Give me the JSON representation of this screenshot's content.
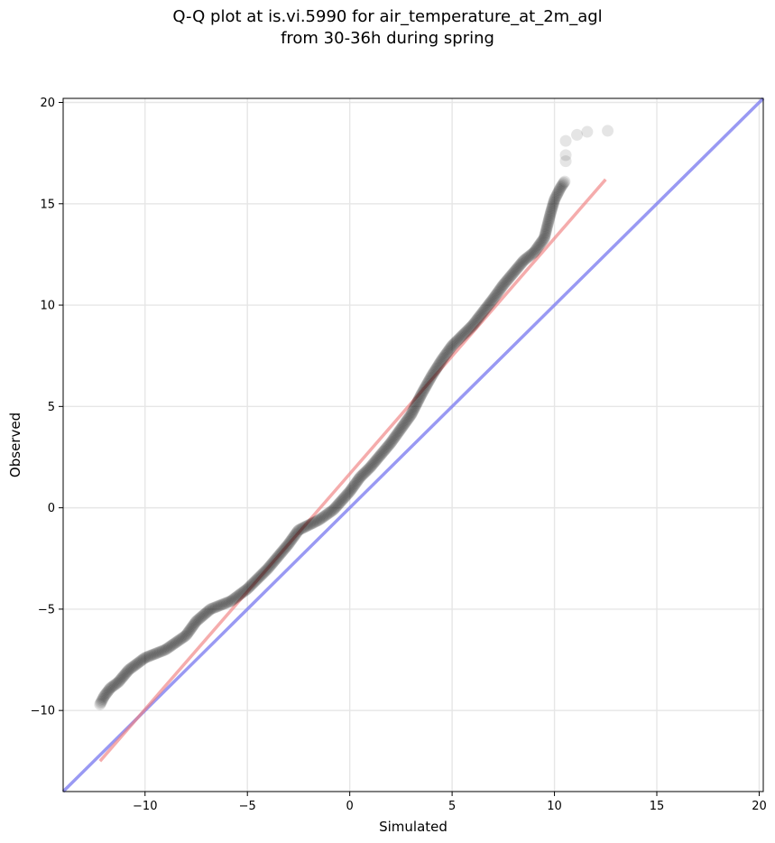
{
  "chart_data": {
    "type": "scatter",
    "title": "Q-Q plot at is.vi.5990 for air_temperature_at_2m_agl",
    "subtitle": "from 30-36h during spring",
    "xlabel": "Simulated",
    "ylabel": "Observed",
    "xlim": [
      -14,
      20.2
    ],
    "ylim": [
      -14,
      20.2
    ],
    "xticks": [
      -10,
      -5,
      0,
      5,
      10,
      15,
      20
    ],
    "yticks": [
      -10,
      -5,
      0,
      5,
      10,
      15,
      20
    ],
    "xtick_labels": [
      "−10",
      "−5",
      "0",
      "5",
      "10",
      "15",
      "20"
    ],
    "ytick_labels": [
      "−10",
      "−5",
      "0",
      "5",
      "10",
      "15",
      "20"
    ],
    "grid": true,
    "colors": {
      "points": "#000000",
      "fit_line": "#f08080",
      "identity_line": "#8080f0",
      "grid": "#e6e6e6"
    },
    "series": [
      {
        "kind": "quantile_points",
        "anchors": [
          [
            -12.2,
            -9.7
          ],
          [
            -12.0,
            -9.3
          ],
          [
            -11.7,
            -8.9
          ],
          [
            -11.3,
            -8.6
          ],
          [
            -10.8,
            -8.0
          ],
          [
            -10.0,
            -7.4
          ],
          [
            -9.0,
            -7.0
          ],
          [
            -8.0,
            -6.3
          ],
          [
            -7.5,
            -5.6
          ],
          [
            -6.8,
            -5.0
          ],
          [
            -5.8,
            -4.6
          ],
          [
            -5.0,
            -4.0
          ],
          [
            -4.0,
            -3.0
          ],
          [
            -3.0,
            -1.8
          ],
          [
            -2.5,
            -1.1
          ],
          [
            -1.5,
            -0.6
          ],
          [
            -0.8,
            -0.1
          ],
          [
            0.0,
            0.8
          ],
          [
            0.5,
            1.5
          ],
          [
            1.0,
            2.0
          ],
          [
            2.0,
            3.2
          ],
          [
            3.0,
            4.6
          ],
          [
            3.5,
            5.6
          ],
          [
            4.0,
            6.5
          ],
          [
            4.5,
            7.3
          ],
          [
            5.0,
            8.0
          ],
          [
            6.0,
            9.0
          ],
          [
            7.0,
            10.3
          ],
          [
            7.5,
            11.0
          ],
          [
            8.0,
            11.6
          ],
          [
            8.5,
            12.2
          ],
          [
            9.0,
            12.6
          ],
          [
            9.5,
            13.3
          ],
          [
            9.8,
            14.5
          ],
          [
            10.0,
            15.2
          ],
          [
            10.3,
            15.8
          ],
          [
            10.5,
            16.1
          ]
        ],
        "tail_points": [
          [
            10.55,
            17.1
          ],
          [
            10.55,
            17.4
          ],
          [
            10.55,
            18.1
          ],
          [
            11.1,
            18.4
          ],
          [
            11.6,
            18.55
          ],
          [
            12.6,
            18.6
          ]
        ]
      },
      {
        "kind": "fit_line",
        "x": [
          -12.2,
          12.5
        ],
        "y": [
          -12.5,
          16.2
        ]
      },
      {
        "kind": "identity_line",
        "x": [
          -14,
          20.2
        ],
        "y": [
          -14,
          20.2
        ]
      }
    ]
  }
}
